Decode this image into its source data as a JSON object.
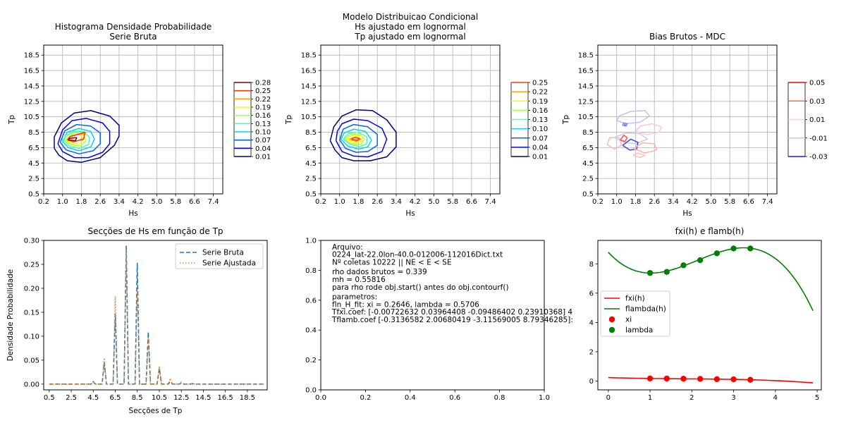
{
  "chart_data": [
    {
      "type": "contour",
      "title": [
        "Histograma Densidade Probabilidade",
        "Serie Bruta"
      ],
      "xlabel": "Hs",
      "ylabel": "Tp",
      "xlim": [
        0.2,
        7.8
      ],
      "ylim": [
        0.5,
        19.8
      ],
      "xticks": [
        "0.2",
        "1.0",
        "1.8",
        "2.6",
        "3.4",
        "4.2",
        "5.0",
        "5.8",
        "6.6",
        "7.4"
      ],
      "yticks": [
        "0.5",
        "2.5",
        "4.5",
        "6.5",
        "8.5",
        "10.5",
        "12.5",
        "14.5",
        "16.5",
        "18.5"
      ],
      "grid": true,
      "colorbar_levels": [
        "0.01",
        "0.04",
        "0.07",
        "0.10",
        "0.13",
        "0.16",
        "0.19",
        "0.22",
        "0.25",
        "0.28"
      ],
      "colorbar_colors": [
        "#00007f",
        "#0000ff",
        "#0063ff",
        "#00d4ff",
        "#4dffaa",
        "#a8ff4e",
        "#f6ff00",
        "#ffa700",
        "#ff3b00",
        "#7f0000"
      ],
      "peak": {
        "hs": 1.4,
        "tp": 7.6
      },
      "contours": [
        {
          "level": 0.01,
          "hs": [
            0.65,
            0.85,
            1.2,
            1.8,
            2.6,
            3.2,
            3.4,
            3.4,
            3.0,
            2.2,
            1.5,
            0.95,
            0.65,
            0.65
          ],
          "tp": [
            6.4,
            5.5,
            4.8,
            4.6,
            5.2,
            6.8,
            8.0,
            9.4,
            10.6,
            11.3,
            11.0,
            9.7,
            7.9,
            6.4
          ]
        },
        {
          "level": 0.04,
          "hs": [
            0.8,
            1.0,
            1.5,
            2.1,
            2.7,
            3.0,
            3.0,
            2.7,
            2.0,
            1.4,
            1.0,
            0.8
          ],
          "tp": [
            7.0,
            6.0,
            5.2,
            5.2,
            5.9,
            7.0,
            8.6,
            9.7,
            10.3,
            10.0,
            8.8,
            7.0
          ]
        },
        {
          "level": 0.07,
          "hs": [
            0.9,
            1.15,
            1.7,
            2.3,
            2.6,
            2.6,
            2.2,
            1.6,
            1.1,
            0.9
          ],
          "tp": [
            7.2,
            6.2,
            5.7,
            6.1,
            7.0,
            8.4,
            9.3,
            9.5,
            8.7,
            7.2
          ]
        },
        {
          "level": 0.1,
          "hs": [
            1.0,
            1.25,
            1.7,
            2.2,
            2.35,
            2.2,
            1.7,
            1.2,
            1.0
          ],
          "tp": [
            7.3,
            6.5,
            6.1,
            6.6,
            7.6,
            8.6,
            9.0,
            8.5,
            7.3
          ]
        },
        {
          "level": 0.13,
          "hs": [
            1.05,
            1.3,
            1.7,
            2.1,
            2.15,
            1.9,
            1.45,
            1.1,
            1.05
          ],
          "tp": [
            7.4,
            6.7,
            6.4,
            6.9,
            7.8,
            8.6,
            8.6,
            8.0,
            7.4
          ]
        },
        {
          "level": 0.16,
          "hs": [
            1.1,
            1.35,
            1.75,
            2.0,
            1.9,
            1.45,
            1.15,
            1.1
          ],
          "tp": [
            7.5,
            6.9,
            6.7,
            7.4,
            8.2,
            8.4,
            7.9,
            7.5
          ]
        },
        {
          "level": 0.19,
          "hs": [
            1.15,
            1.4,
            1.75,
            1.9,
            1.7,
            1.35,
            1.15
          ],
          "tp": [
            7.5,
            7.0,
            7.0,
            7.7,
            8.2,
            8.1,
            7.5
          ]
        },
        {
          "level": 0.22,
          "hs": [
            1.2,
            1.45,
            1.9,
            1.95,
            1.4,
            1.2
          ],
          "tp": [
            7.5,
            7.2,
            7.7,
            8.3,
            8.1,
            7.5
          ]
        },
        {
          "level": 0.25,
          "hs": [
            1.2,
            1.5,
            1.9,
            1.95,
            1.3,
            1.2
          ],
          "tp": [
            7.5,
            7.3,
            7.6,
            8.5,
            7.9,
            7.5
          ]
        },
        {
          "level": 0.28,
          "hs": [
            1.25,
            1.55,
            1.6,
            1.3,
            1.25
          ],
          "tp": [
            7.5,
            7.4,
            7.8,
            7.7,
            7.5
          ]
        }
      ]
    },
    {
      "type": "contour",
      "title": [
        "Modelo Distribuicao Condicional",
        "Hs ajustado em lognormal",
        "Tp ajustado em lognormal"
      ],
      "xlabel": "Hs",
      "ylabel": "Tp",
      "xlim": [
        0.2,
        7.8
      ],
      "ylim": [
        0.5,
        19.8
      ],
      "xticks": [
        "0.2",
        "1.0",
        "1.8",
        "2.6",
        "3.4",
        "4.2",
        "5.0",
        "5.8",
        "6.6",
        "7.4"
      ],
      "yticks": [
        "0.5",
        "2.5",
        "4.5",
        "6.5",
        "8.5",
        "10.5",
        "12.5",
        "14.5",
        "16.5",
        "18.5"
      ],
      "grid": true,
      "colorbar_levels": [
        "0.01",
        "0.04",
        "0.07",
        "0.10",
        "0.13",
        "0.16",
        "0.19",
        "0.22",
        "0.25"
      ],
      "colorbar_colors": [
        "#00007f",
        "#0000ff",
        "#0063ff",
        "#00d4ff",
        "#4dffaa",
        "#a8ff4e",
        "#f6ff00",
        "#ffa700",
        "#ff3b00"
      ],
      "peak": {
        "hs": 1.7,
        "tp": 7.6
      },
      "contours": [
        {
          "level": 0.01,
          "hs": [
            0.6,
            0.8,
            1.1,
            1.6,
            2.3,
            3.0,
            3.4,
            3.4,
            3.0,
            2.4,
            1.7,
            1.1,
            0.75,
            0.6
          ],
          "tp": [
            7.4,
            6.2,
            5.2,
            4.8,
            4.8,
            5.3,
            6.6,
            8.5,
            10.1,
            11.3,
            11.4,
            10.6,
            9.2,
            7.4
          ]
        },
        {
          "level": 0.04,
          "hs": [
            0.85,
            1.1,
            1.6,
            2.2,
            2.8,
            3.0,
            2.8,
            2.2,
            1.6,
            1.1,
            0.9,
            0.85
          ],
          "tp": [
            7.4,
            6.0,
            5.4,
            5.3,
            6.0,
            7.6,
            9.0,
            10.0,
            10.2,
            9.6,
            8.6,
            7.4
          ]
        },
        {
          "level": 0.07,
          "hs": [
            1.0,
            1.25,
            1.7,
            2.2,
            2.6,
            2.6,
            2.2,
            1.6,
            1.15,
            1.0
          ],
          "tp": [
            7.5,
            6.4,
            5.9,
            6.0,
            6.8,
            8.2,
            9.2,
            9.5,
            8.9,
            7.5
          ]
        },
        {
          "level": 0.1,
          "hs": [
            1.05,
            1.35,
            1.8,
            2.2,
            2.35,
            2.1,
            1.6,
            1.2,
            1.05
          ],
          "tp": [
            7.6,
            6.7,
            6.3,
            6.6,
            7.5,
            8.6,
            8.9,
            8.4,
            7.6
          ]
        },
        {
          "level": 0.13,
          "hs": [
            1.15,
            1.45,
            1.85,
            2.15,
            2.15,
            1.8,
            1.4,
            1.15
          ],
          "tp": [
            7.6,
            6.9,
            6.6,
            7.0,
            7.9,
            8.5,
            8.4,
            7.6
          ]
        },
        {
          "level": 0.16,
          "hs": [
            1.2,
            1.5,
            1.9,
            2.05,
            1.85,
            1.45,
            1.2
          ],
          "tp": [
            7.6,
            7.0,
            6.9,
            7.6,
            8.3,
            8.2,
            7.6
          ]
        },
        {
          "level": 0.19,
          "hs": [
            1.3,
            1.6,
            1.95,
            1.95,
            1.55,
            1.3
          ],
          "tp": [
            7.6,
            7.1,
            7.3,
            8.0,
            8.1,
            7.6
          ]
        },
        {
          "level": 0.22,
          "hs": [
            1.4,
            1.7,
            1.9,
            1.7,
            1.4
          ],
          "tp": [
            7.6,
            7.3,
            7.6,
            7.9,
            7.6
          ]
        },
        {
          "level": 0.25,
          "hs": [
            1.5,
            1.75,
            1.85,
            1.6,
            1.5
          ],
          "tp": [
            7.6,
            7.45,
            7.7,
            7.8,
            7.6
          ]
        }
      ]
    },
    {
      "type": "contour",
      "title": [
        "Bias Brutos - MDC"
      ],
      "xlabel": "Hs",
      "ylabel": "Tp",
      "xlim": [
        0.2,
        7.8
      ],
      "ylim": [
        0.5,
        19.8
      ],
      "xticks": [
        "0.2",
        "1.0",
        "1.8",
        "2.6",
        "3.4",
        "4.2",
        "5.0",
        "5.8",
        "6.6",
        "7.4"
      ],
      "yticks": [
        "0.5",
        "2.5",
        "4.5",
        "6.5",
        "8.5",
        "10.5",
        "12.5",
        "14.5",
        "16.5",
        "18.5"
      ],
      "grid": true,
      "colorbar_levels": [
        "-0.03",
        "-0.01",
        "0.01",
        "0.03",
        "0.05"
      ],
      "colorbar_colors": [
        "#1a1aff",
        "#c8c8ff",
        "#ffd0d0",
        "#ff6060",
        "#ff0000"
      ],
      "contours": [
        {
          "level": -0.01,
          "hs": [
            1.0,
            1.4,
            2.0,
            2.4,
            2.2,
            1.6,
            1.1,
            1.0
          ],
          "tp": [
            10.0,
            9.6,
            9.8,
            10.6,
            11.3,
            11.2,
            10.6,
            10.0
          ],
          "color": "#c0c0ff"
        },
        {
          "level": -0.01,
          "hs": [
            0.9,
            1.3,
            1.8,
            2.3,
            2.0,
            1.4,
            0.9
          ],
          "tp": [
            7.8,
            7.2,
            7.0,
            7.6,
            8.3,
            8.4,
            7.8
          ],
          "color": "#c8c8ff"
        },
        {
          "level": -0.03,
          "hs": [
            1.25,
            1.55,
            1.85,
            1.9,
            1.6,
            1.25
          ],
          "tp": [
            6.8,
            6.2,
            6.3,
            7.2,
            7.6,
            6.8
          ],
          "color": "#4040ff"
        },
        {
          "level": 0.01,
          "hs": [
            1.8,
            2.3,
            2.8,
            2.9,
            2.5,
            2.0,
            1.8
          ],
          "tp": [
            8.6,
            8.2,
            8.5,
            9.2,
            9.6,
            9.3,
            8.6
          ],
          "color": "#ffc8c8"
        },
        {
          "level": 0.01,
          "hs": [
            1.7,
            2.2,
            2.7,
            2.6,
            2.1,
            1.7
          ],
          "tp": [
            6.4,
            5.8,
            6.2,
            7.0,
            7.1,
            6.4
          ],
          "color": "#ffb0b0"
        },
        {
          "level": 0.01,
          "hs": [
            0.6,
            0.9,
            1.2,
            1.1,
            0.7,
            0.6
          ],
          "tp": [
            6.9,
            6.3,
            6.8,
            7.8,
            7.8,
            6.9
          ],
          "color": "#ffb8b8"
        },
        {
          "level": 0.01,
          "hs": [
            1.7,
            2.0,
            2.2,
            1.9,
            1.7
          ],
          "tp": [
            5.5,
            5.2,
            5.5,
            5.8,
            5.5
          ],
          "color": "#ffc0c0"
        },
        {
          "level": 0.03,
          "hs": [
            1.15,
            1.35,
            1.45,
            1.3,
            1.15
          ],
          "tp": [
            7.5,
            7.3,
            7.8,
            8.1,
            7.5
          ],
          "color": "#ff5050"
        },
        {
          "level": -0.01,
          "hs": [
            1.25,
            1.4,
            1.45,
            1.3,
            1.25
          ],
          "tp": [
            9.4,
            9.3,
            9.6,
            9.7,
            9.4
          ],
          "color": "#8080ff"
        }
      ]
    },
    {
      "type": "line",
      "title": "Secções de Hs em função de Tp",
      "xlabel": "Secções de Tp",
      "ylabel": "Densidade Probabilidade",
      "xlim": [
        0.0,
        20.3
      ],
      "ylim": [
        -0.012,
        0.3
      ],
      "xticks": [
        "0.5",
        "2.5",
        "4.5",
        "6.5",
        "8.5",
        "10.5",
        "12.5",
        "14.5",
        "16.5",
        "18.5"
      ],
      "yticks": [
        "0.00",
        "0.05",
        "0.10",
        "0.15",
        "0.20",
        "0.25",
        "0.30"
      ],
      "grid": false,
      "legend_position": "top-right",
      "series": [
        {
          "name": "Serie Bruta",
          "color": "#1f77b4",
          "dash": "dashed",
          "x": [
            0.5,
            4.3,
            4.5,
            4.7,
            5.3,
            5.5,
            5.7,
            6.3,
            6.5,
            6.7,
            7.3,
            7.5,
            7.7,
            8.3,
            8.5,
            8.7,
            9.3,
            9.5,
            9.7,
            10.3,
            10.5,
            10.7,
            11.3,
            11.5,
            11.7,
            12.3,
            12.5,
            12.7,
            13.3,
            13.5,
            13.7,
            20.0
          ],
          "y": [
            0.0,
            0.0,
            0.005,
            0.0,
            0.0,
            0.045,
            0.0,
            0.0,
            0.147,
            0.0,
            0.0,
            0.289,
            0.0,
            0.0,
            0.253,
            0.0,
            0.0,
            0.109,
            0.0,
            0.0,
            0.033,
            0.0,
            0.0,
            0.005,
            0.0,
            0.0,
            0.002,
            0.0,
            0.0,
            0.001,
            0.0,
            0.0
          ]
        },
        {
          "name": "Serie Ajustada",
          "color": "#ff7f0e",
          "dash": "dotted",
          "x": [
            0.5,
            4.3,
            4.5,
            4.7,
            5.3,
            5.5,
            5.7,
            6.3,
            6.5,
            6.7,
            7.3,
            7.5,
            7.7,
            8.3,
            8.5,
            8.7,
            9.3,
            9.5,
            9.7,
            10.3,
            10.5,
            10.7,
            11.3,
            11.5,
            11.7,
            12.3,
            12.5,
            12.7,
            20.0
          ],
          "y": [
            0.0,
            0.0,
            0.004,
            0.0,
            0.0,
            0.055,
            0.0,
            0.0,
            0.183,
            0.0,
            0.0,
            0.28,
            0.0,
            0.0,
            0.195,
            0.0,
            0.0,
            0.097,
            0.0,
            0.0,
            0.038,
            0.0,
            0.0,
            0.012,
            0.0,
            0.0,
            0.004,
            0.0,
            0.0
          ]
        }
      ]
    },
    {
      "type": "text",
      "xlim": [
        0.0,
        1.0
      ],
      "ylim": [
        0.0,
        1.0
      ],
      "xticks": [
        "0.0",
        "0.2",
        "0.4",
        "0.6",
        "0.8",
        "1.0"
      ],
      "yticks": [
        "0.0",
        "0.2",
        "0.4",
        "0.6",
        "0.8",
        "1.0"
      ],
      "lines": [
        "Arquivo:",
        "0224_lat-22.0lon-40.0-012006-112016Dict.txt",
        "Nº coletas 10222 || NE < E < SE",
        "",
        "rho dados brutos = 0.339",
        "mh = 0.55816",
        "para rho rode obj.start() antes do obj.contourf()",
        "",
        "parametros:",
        "fln_H_fit: xi = 0.2646, lambda = 0.5706",
        "Tfxi.coef: [-0.00722632  0.03964408 -0.09486402  0.23910368] 4",
        "Tflamb.coef [-0.3136582   2.00680419 -3.11569005  8.79346285]:"
      ]
    },
    {
      "type": "line",
      "title": "fxi(h) e flamb(h)",
      "xlim": [
        -0.25,
        5.1
      ],
      "ylim": [
        -0.6,
        9.6
      ],
      "xticks": [
        "0",
        "1",
        "2",
        "3",
        "4",
        "5"
      ],
      "yticks": [
        "0",
        "2",
        "4",
        "6",
        "8"
      ],
      "grid": false,
      "legend_position": "center-left",
      "series": [
        {
          "name": "fxi(h)",
          "color": "#ff0000",
          "kind": "line",
          "coef": [
            -0.00722632,
            0.03964408,
            -0.09486402,
            0.23910368
          ],
          "x_range": [
            0.0,
            4.9
          ]
        },
        {
          "name": "flambda(h)",
          "color": "#008000",
          "kind": "line",
          "coef": [
            -0.3136582,
            2.00680419,
            -3.11569005,
            8.79346285
          ],
          "x_range": [
            0.0,
            4.9
          ]
        },
        {
          "name": "xi",
          "color": "#ff0000",
          "kind": "scatter",
          "x": [
            1.0,
            1.4,
            1.8,
            2.2,
            2.6,
            3.0,
            3.4
          ],
          "y": [
            0.18,
            0.17,
            0.16,
            0.15,
            0.13,
            0.12,
            0.09
          ]
        },
        {
          "name": "lambda",
          "color": "#008000",
          "kind": "scatter",
          "x": [
            1.0,
            1.4,
            1.8,
            2.2,
            2.6,
            3.0,
            3.4
          ],
          "y": [
            7.38,
            7.45,
            7.9,
            8.25,
            8.72,
            9.05,
            9.05
          ]
        }
      ]
    }
  ]
}
